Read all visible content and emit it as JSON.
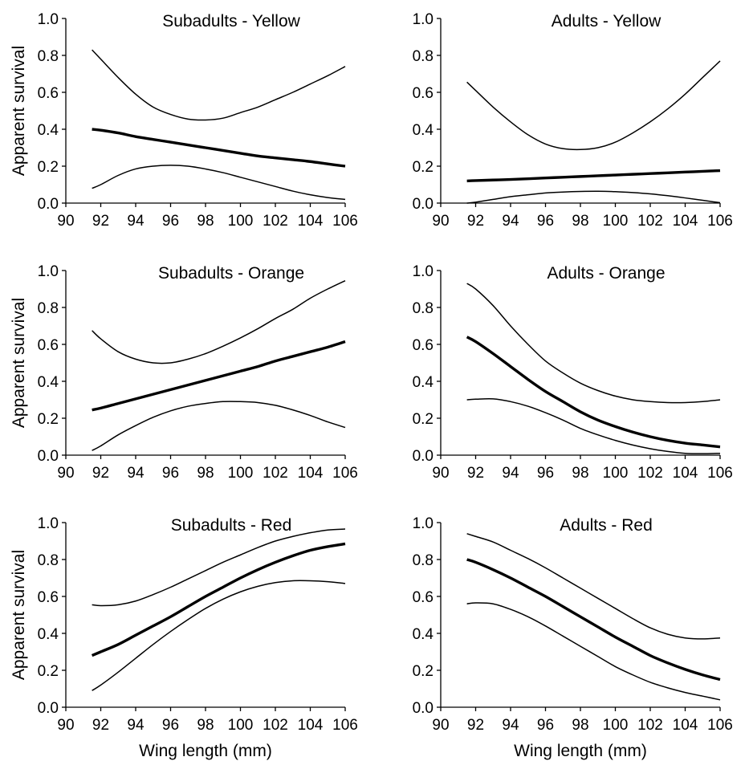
{
  "figure": {
    "xlabel": "Wing length (mm)",
    "ylabel": "Apparent survival"
  },
  "chart_data": [
    {
      "type": "line",
      "title": "Subadults - Yellow",
      "xlabel": "",
      "ylabel": "Apparent survival",
      "xlim": [
        90,
        106
      ],
      "ylim": [
        0,
        1
      ],
      "xticks": [
        90,
        92,
        94,
        96,
        98,
        100,
        102,
        104,
        106
      ],
      "yticks": [
        "0.0",
        "0.2",
        "0.4",
        "0.6",
        "0.8",
        "1.0"
      ],
      "x": [
        91.5,
        92,
        93,
        94,
        95,
        96,
        97,
        98,
        99,
        100,
        101,
        102,
        103,
        104,
        105,
        106
      ],
      "series": [
        {
          "role": "estimate",
          "values": [
            0.4,
            0.395,
            0.38,
            0.36,
            0.345,
            0.33,
            0.315,
            0.3,
            0.285,
            0.27,
            0.255,
            0.245,
            0.235,
            0.225,
            0.212,
            0.2
          ]
        },
        {
          "role": "upper",
          "values": [
            0.83,
            0.78,
            0.68,
            0.59,
            0.52,
            0.48,
            0.455,
            0.45,
            0.46,
            0.49,
            0.52,
            0.56,
            0.6,
            0.645,
            0.69,
            0.74
          ]
        },
        {
          "role": "lower",
          "values": [
            0.08,
            0.1,
            0.15,
            0.185,
            0.2,
            0.205,
            0.2,
            0.185,
            0.165,
            0.14,
            0.115,
            0.09,
            0.065,
            0.045,
            0.03,
            0.02
          ]
        }
      ]
    },
    {
      "type": "line",
      "title": "Adults - Yellow",
      "xlabel": "",
      "ylabel": "",
      "xlim": [
        90,
        106
      ],
      "ylim": [
        0,
        1
      ],
      "xticks": [
        90,
        92,
        94,
        96,
        98,
        100,
        102,
        104,
        106
      ],
      "yticks": [
        "0.0",
        "0.2",
        "0.4",
        "0.6",
        "0.8",
        "1.0"
      ],
      "x": [
        91.5,
        92,
        93,
        94,
        95,
        96,
        97,
        98,
        99,
        100,
        101,
        102,
        103,
        104,
        105,
        106
      ],
      "series": [
        {
          "role": "estimate",
          "values": [
            0.12,
            0.122,
            0.125,
            0.128,
            0.132,
            0.136,
            0.14,
            0.144,
            0.148,
            0.152,
            0.156,
            0.16,
            0.164,
            0.168,
            0.172,
            0.176
          ]
        },
        {
          "role": "upper",
          "values": [
            0.655,
            0.61,
            0.52,
            0.44,
            0.37,
            0.32,
            0.295,
            0.29,
            0.3,
            0.33,
            0.38,
            0.44,
            0.51,
            0.59,
            0.68,
            0.77
          ]
        },
        {
          "role": "lower",
          "values": [
            0.0,
            0.005,
            0.02,
            0.035,
            0.045,
            0.055,
            0.06,
            0.063,
            0.064,
            0.062,
            0.057,
            0.05,
            0.04,
            0.028,
            0.015,
            0.002
          ]
        }
      ]
    },
    {
      "type": "line",
      "title": "Subadults - Orange",
      "xlabel": "",
      "ylabel": "Apparent survival",
      "xlim": [
        90,
        106
      ],
      "ylim": [
        0,
        1
      ],
      "xticks": [
        90,
        92,
        94,
        96,
        98,
        100,
        102,
        104,
        106
      ],
      "yticks": [
        "0.0",
        "0.2",
        "0.4",
        "0.6",
        "0.8",
        "1.0"
      ],
      "x": [
        91.5,
        92,
        93,
        94,
        95,
        96,
        97,
        98,
        99,
        100,
        101,
        102,
        103,
        104,
        105,
        106
      ],
      "series": [
        {
          "role": "estimate",
          "values": [
            0.245,
            0.255,
            0.28,
            0.305,
            0.33,
            0.355,
            0.38,
            0.405,
            0.43,
            0.455,
            0.48,
            0.51,
            0.535,
            0.56,
            0.585,
            0.615
          ]
        },
        {
          "role": "upper",
          "values": [
            0.675,
            0.63,
            0.56,
            0.52,
            0.5,
            0.5,
            0.52,
            0.55,
            0.59,
            0.635,
            0.685,
            0.74,
            0.79,
            0.85,
            0.9,
            0.945
          ]
        },
        {
          "role": "lower",
          "values": [
            0.025,
            0.05,
            0.11,
            0.16,
            0.205,
            0.24,
            0.265,
            0.28,
            0.29,
            0.29,
            0.285,
            0.27,
            0.245,
            0.215,
            0.18,
            0.15
          ]
        }
      ]
    },
    {
      "type": "line",
      "title": "Adults - Orange",
      "xlabel": "",
      "ylabel": "",
      "xlim": [
        90,
        106
      ],
      "ylim": [
        0,
        1
      ],
      "xticks": [
        90,
        92,
        94,
        96,
        98,
        100,
        102,
        104,
        106
      ],
      "yticks": [
        "0.0",
        "0.2",
        "0.4",
        "0.6",
        "0.8",
        "1.0"
      ],
      "x": [
        91.5,
        92,
        93,
        94,
        95,
        96,
        97,
        98,
        99,
        100,
        101,
        102,
        103,
        104,
        105,
        106
      ],
      "series": [
        {
          "role": "estimate",
          "values": [
            0.64,
            0.615,
            0.55,
            0.48,
            0.41,
            0.345,
            0.29,
            0.235,
            0.19,
            0.155,
            0.125,
            0.1,
            0.08,
            0.065,
            0.055,
            0.045
          ]
        },
        {
          "role": "upper",
          "values": [
            0.93,
            0.9,
            0.81,
            0.7,
            0.6,
            0.51,
            0.445,
            0.39,
            0.35,
            0.32,
            0.3,
            0.29,
            0.285,
            0.285,
            0.29,
            0.3
          ]
        },
        {
          "role": "lower",
          "values": [
            0.3,
            0.303,
            0.305,
            0.29,
            0.265,
            0.23,
            0.19,
            0.145,
            0.11,
            0.08,
            0.055,
            0.035,
            0.02,
            0.01,
            0.008,
            0.01
          ]
        }
      ]
    },
    {
      "type": "line",
      "title": "Subadults - Red",
      "xlabel": "Wing length (mm)",
      "ylabel": "Apparent survival",
      "xlim": [
        90,
        106
      ],
      "ylim": [
        0,
        1
      ],
      "xticks": [
        90,
        92,
        94,
        96,
        98,
        100,
        102,
        104,
        106
      ],
      "yticks": [
        "0.0",
        "0.2",
        "0.4",
        "0.6",
        "0.8",
        "1.0"
      ],
      "x": [
        91.5,
        92,
        93,
        94,
        95,
        96,
        97,
        98,
        99,
        100,
        101,
        102,
        103,
        104,
        105,
        106
      ],
      "series": [
        {
          "role": "estimate",
          "values": [
            0.28,
            0.3,
            0.34,
            0.39,
            0.44,
            0.49,
            0.545,
            0.6,
            0.65,
            0.7,
            0.745,
            0.785,
            0.82,
            0.85,
            0.87,
            0.885
          ]
        },
        {
          "role": "upper",
          "values": [
            0.555,
            0.55,
            0.555,
            0.575,
            0.61,
            0.65,
            0.695,
            0.74,
            0.785,
            0.825,
            0.865,
            0.9,
            0.925,
            0.945,
            0.96,
            0.965
          ]
        },
        {
          "role": "lower",
          "values": [
            0.09,
            0.12,
            0.19,
            0.265,
            0.34,
            0.41,
            0.475,
            0.535,
            0.585,
            0.625,
            0.655,
            0.675,
            0.685,
            0.685,
            0.68,
            0.67
          ]
        }
      ]
    },
    {
      "type": "line",
      "title": "Adults - Red",
      "xlabel": "Wing length (mm)",
      "ylabel": "",
      "xlim": [
        90,
        106
      ],
      "ylim": [
        0,
        1
      ],
      "xticks": [
        90,
        92,
        94,
        96,
        98,
        100,
        102,
        104,
        106
      ],
      "yticks": [
        "0.0",
        "0.2",
        "0.4",
        "0.6",
        "0.8",
        "1.0"
      ],
      "x": [
        91.5,
        92,
        93,
        94,
        95,
        96,
        97,
        98,
        99,
        100,
        101,
        102,
        103,
        104,
        105,
        106
      ],
      "series": [
        {
          "role": "estimate",
          "values": [
            0.8,
            0.785,
            0.745,
            0.7,
            0.65,
            0.6,
            0.545,
            0.49,
            0.435,
            0.38,
            0.33,
            0.28,
            0.24,
            0.205,
            0.175,
            0.15
          ]
        },
        {
          "role": "upper",
          "values": [
            0.94,
            0.925,
            0.895,
            0.85,
            0.805,
            0.755,
            0.7,
            0.645,
            0.59,
            0.535,
            0.48,
            0.43,
            0.395,
            0.375,
            0.37,
            0.375
          ]
        },
        {
          "role": "lower",
          "values": [
            0.56,
            0.565,
            0.56,
            0.53,
            0.49,
            0.44,
            0.385,
            0.33,
            0.275,
            0.22,
            0.175,
            0.135,
            0.105,
            0.08,
            0.06,
            0.04
          ]
        }
      ]
    }
  ]
}
